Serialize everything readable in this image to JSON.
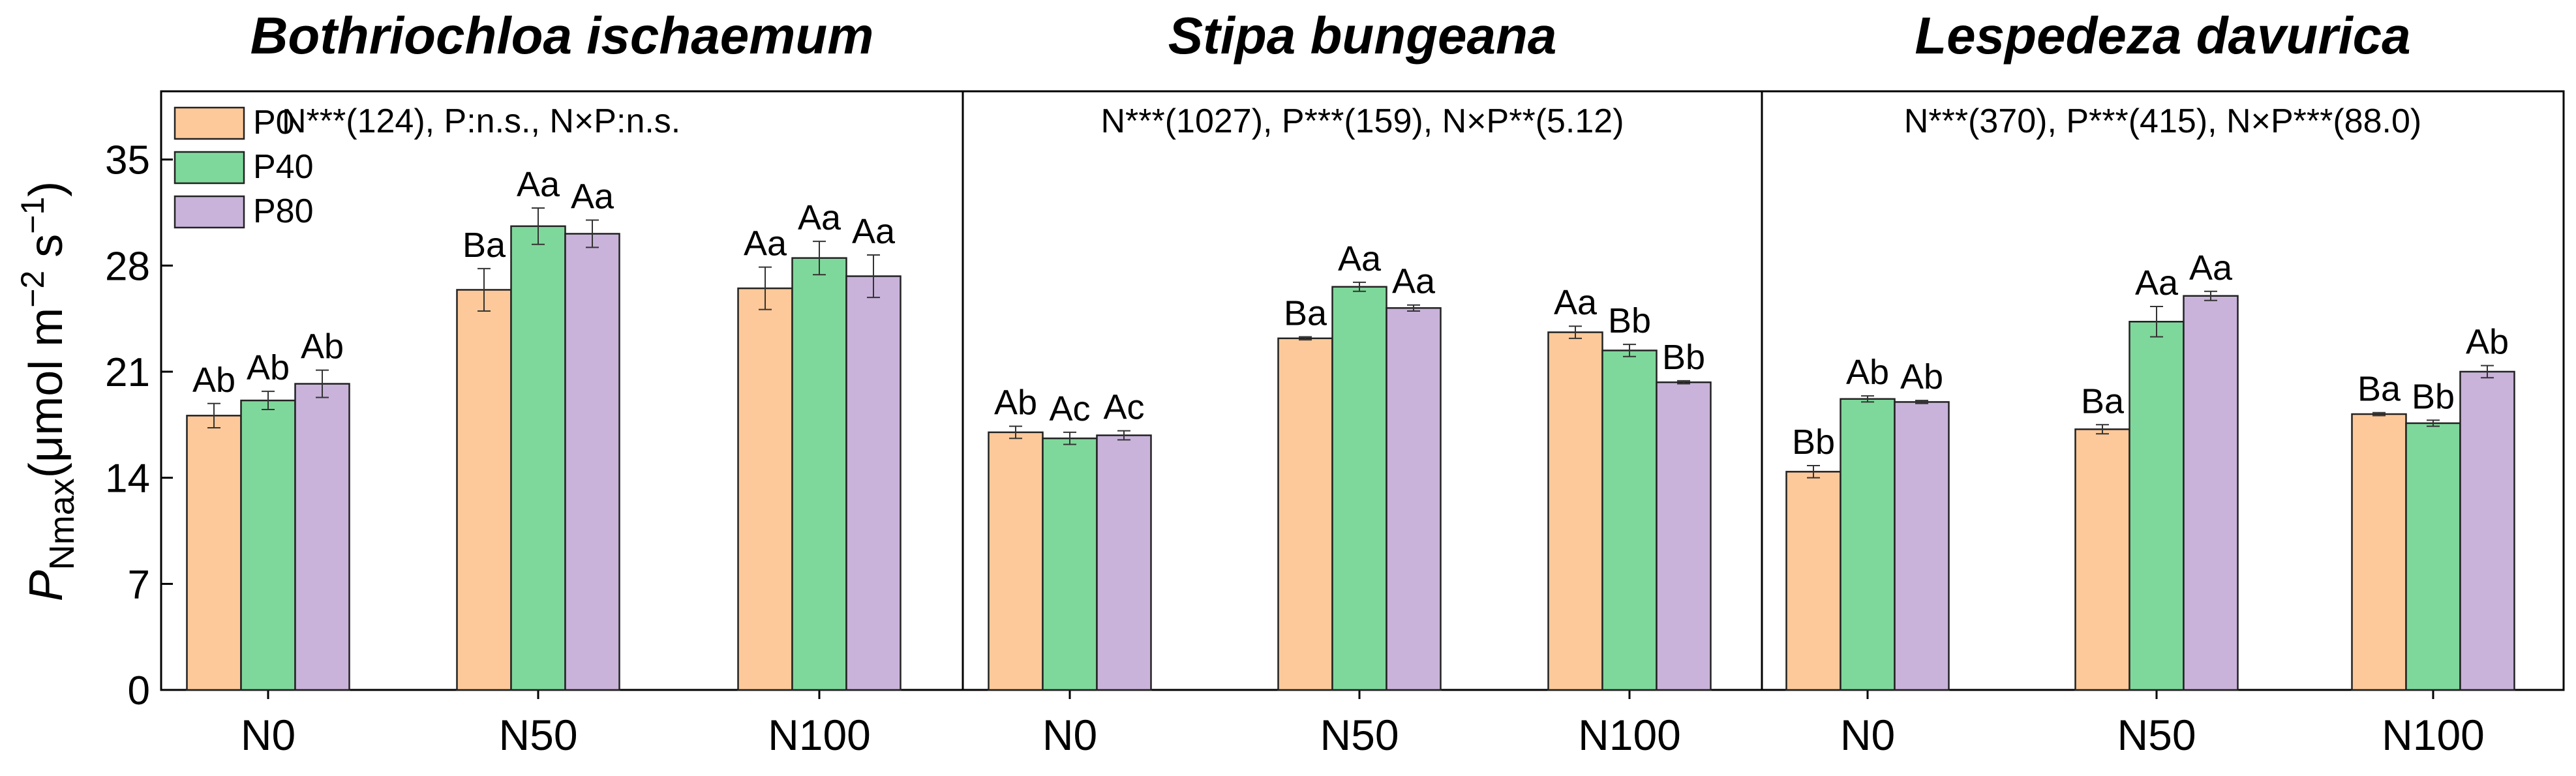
{
  "figure": {
    "y_axis_label": {
      "symbol": "P",
      "subscript": "Nmax",
      "unit_open": "(μmol m",
      "exp1": "−2",
      "unit_mid": " s",
      "exp2": "−1",
      "unit_close": ")"
    },
    "y_ticks": [
      "0",
      "7",
      "14",
      "21",
      "28",
      "35"
    ],
    "legend": [
      "P0",
      "P40",
      "P80"
    ],
    "colors": {
      "P0": "#FDC99A",
      "P40": "#7FD89B",
      "P80": "#C9B3DA",
      "stroke": "#222222",
      "axis": "#000000"
    }
  },
  "chart_data": [
    {
      "type": "bar",
      "title": "Bothriochloa ischaemum",
      "stats": "N***(124), P:n.s., N×P:n.s.",
      "categories": [
        "N0",
        "N50",
        "N100"
      ],
      "ylim": [
        0,
        39.5
      ],
      "series": [
        {
          "name": "P0",
          "values": [
            18.1,
            26.4,
            26.5
          ],
          "errors": [
            0.8,
            1.4,
            1.4
          ],
          "labels": [
            "Ab",
            "Ba",
            "Aa"
          ]
        },
        {
          "name": "P40",
          "values": [
            19.1,
            30.6,
            28.5
          ],
          "errors": [
            0.6,
            1.2,
            1.1
          ],
          "labels": [
            "Ab",
            "Aa",
            "Aa"
          ]
        },
        {
          "name": "P80",
          "values": [
            20.2,
            30.1,
            27.3
          ],
          "errors": [
            0.9,
            0.9,
            1.4
          ],
          "labels": [
            "Ab",
            "Aa",
            "Aa"
          ]
        }
      ]
    },
    {
      "type": "bar",
      "title": "Stipa bungeana",
      "stats": "N***(1027), P***(159), N×P**(5.12)",
      "categories": [
        "N0",
        "N50",
        "N100"
      ],
      "ylim": [
        0,
        39.5
      ],
      "series": [
        {
          "name": "P0",
          "values": [
            17.0,
            23.2,
            23.6
          ],
          "errors": [
            0.4,
            0.1,
            0.4
          ],
          "labels": [
            "Ab",
            "Ba",
            "Aa"
          ]
        },
        {
          "name": "P40",
          "values": [
            16.6,
            26.6,
            22.4
          ],
          "errors": [
            0.4,
            0.3,
            0.4
          ],
          "labels": [
            "Ac",
            "Aa",
            "Bb"
          ]
        },
        {
          "name": "P80",
          "values": [
            16.8,
            25.2,
            20.3
          ],
          "errors": [
            0.3,
            0.2,
            0.1
          ],
          "labels": [
            "Ac",
            "Aa",
            "Bb"
          ]
        }
      ]
    },
    {
      "type": "bar",
      "title": "Lespedeza davurica",
      "stats": "N***(370), P***(415), N×P***(88.0)",
      "categories": [
        "N0",
        "N50",
        "N100"
      ],
      "ylim": [
        0,
        39.5
      ],
      "series": [
        {
          "name": "P0",
          "values": [
            14.4,
            17.2,
            18.2
          ],
          "errors": [
            0.4,
            0.3,
            0.1
          ],
          "labels": [
            "Bb",
            "Ba",
            "Ba"
          ]
        },
        {
          "name": "P40",
          "values": [
            19.2,
            24.3,
            17.6
          ],
          "errors": [
            0.2,
            1.0,
            0.2
          ],
          "labels": [
            "Ab",
            "Aa",
            "Bb"
          ]
        },
        {
          "name": "P80",
          "values": [
            19.0,
            26.0,
            21.0
          ],
          "errors": [
            0.1,
            0.3,
            0.4
          ],
          "labels": [
            "Ab",
            "Aa",
            "Ab"
          ]
        }
      ]
    }
  ]
}
